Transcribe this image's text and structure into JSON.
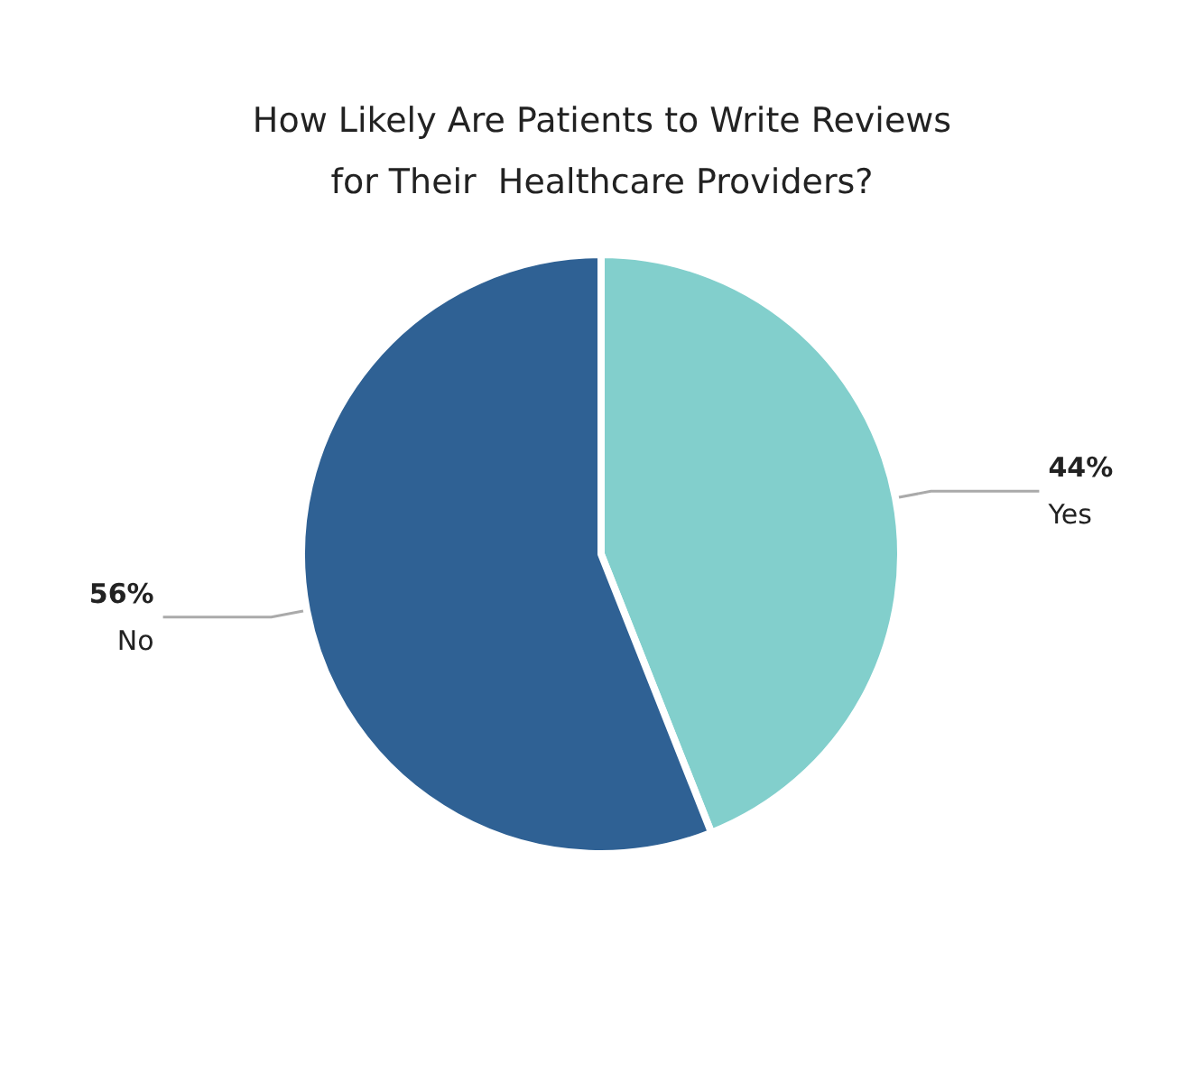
{
  "chart_data": {
    "type": "pie",
    "title": "How Likely Are Patients to Write Reviews\nfor Their  Healthcare Providers?",
    "categories": [
      "Yes",
      "No"
    ],
    "values": [
      44,
      56
    ],
    "colors": [
      "#82cfcc",
      "#2f6194"
    ],
    "value_labels": [
      "44%",
      "56%"
    ],
    "legend": false
  }
}
